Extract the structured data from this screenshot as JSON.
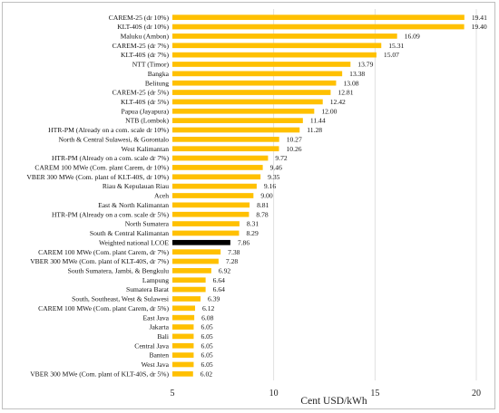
{
  "chart_data": {
    "type": "bar",
    "orientation": "horizontal",
    "title": "",
    "xlabel": "Cent USD/kWh",
    "ylabel": "",
    "xlim": [
      5,
      20
    ],
    "xticks": [
      5,
      10,
      15,
      20
    ],
    "grid": true,
    "colors": {
      "bar": "#FFC000",
      "highlight": "#000000",
      "grid": "#d9d9d9"
    },
    "highlight_category": "Weighted national LCOE",
    "categories": [
      "CAREM-25 (dr 10%)",
      "KLT-40S (dr 10%)",
      "Maluku (Ambon)",
      "CAREM-25 (dr 7%)",
      "KLT-40S (dr 7%)",
      "NTT (Timor)",
      "Bangka",
      "Belitung",
      "CAREM-25 (dr 5%)",
      "KLT-40S (dr 5%)",
      "Papua (Jayapura)",
      "NTB (Lombok)",
      "HTR-PM (Already on a com. scale dr 10%)",
      "North & Central Sulawesi, & Gorontalo",
      "West Kalimantan",
      "HTR-PM (Already on a com. scale dr 7%)",
      "CAREM 100 MWe (Com. plant Carem, dr 10%)",
      "VBER 300 MWe (Com. plant of KLT-40S, dr 10%)",
      "Riau & Kepulauan Riau",
      "Aceh",
      "East & North Kalimantan",
      "HTR-PM (Already on a com. scale dr 5%)",
      "North Sumatera",
      "South & Central Kalimantan",
      "Weighted national LCOE",
      "CAREM 100 MWe (Com. plant Carem, dr 7%)",
      "VBER 300 MWe (Com. plant of KLT-40S, dr 7%)",
      "South Sumatera, Jambi, & Bengkulu",
      "Lampung",
      "Sumatera Barat",
      "South, Southeast, West & Sulawesi",
      "CAREM 100 MWe (Com. plant Carem, dr 5%)",
      "East Java",
      "Jakarta",
      "Bali",
      "Central Java",
      "Banten",
      "West Java",
      "VBER 300 MWe (Com. plant of KLT-40S, dr 5%)"
    ],
    "values": [
      19.41,
      19.4,
      16.09,
      15.31,
      15.07,
      13.79,
      13.38,
      13.08,
      12.81,
      12.42,
      12.0,
      11.44,
      11.28,
      10.27,
      10.26,
      9.72,
      9.46,
      9.35,
      9.16,
      9.0,
      8.81,
      8.78,
      8.31,
      8.29,
      7.86,
      7.38,
      7.28,
      6.92,
      6.64,
      6.64,
      6.39,
      6.12,
      6.08,
      6.05,
      6.05,
      6.05,
      6.05,
      6.05,
      6.02
    ],
    "value_labels": [
      "19.41",
      "19.40",
      "16.09",
      "15.31",
      "15.07",
      "13.79",
      "13.38",
      "13.08",
      "12.81",
      "12.42",
      "12.00",
      "11.44",
      "11.28",
      "10.27",
      "10.26",
      "9.72",
      "9.46",
      "9.35",
      "9.16",
      "9.00",
      "8.81",
      "8.78",
      "8.31",
      "8.29",
      "7.86",
      "7.38",
      "7.28",
      "6.92",
      "6.64",
      "6.64",
      "6.39",
      "6.12",
      "6.08",
      "6.05",
      "6.05",
      "6.05",
      "6.05",
      "6.05",
      "6.02"
    ]
  }
}
